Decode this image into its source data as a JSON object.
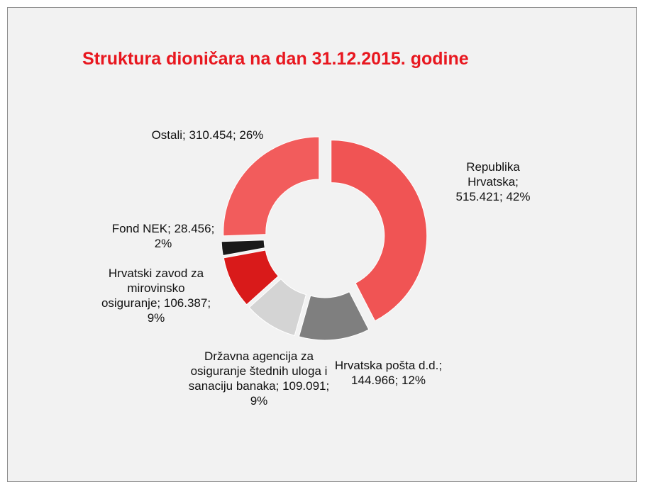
{
  "chart_data": {
    "type": "donut",
    "title": "Struktura dioničara na dan 31.12.2015. godine",
    "separator": "; ",
    "categories": [
      "Republika Hrvatska",
      "Hrvatska pošta d.d.",
      "Državna agencija za osiguranje štednih uloga i sanaciju banaka",
      "Hrvatski zavod za mirovinsko osiguranje",
      "Fond NEK",
      "Ostali"
    ],
    "values": [
      515421,
      144966,
      109091,
      106387,
      28456,
      310454
    ],
    "value_labels": [
      "515.421",
      "144.966",
      "109.091",
      "106.387",
      "28.456",
      "310.454"
    ],
    "percents": [
      42,
      12,
      9,
      9,
      2,
      26
    ],
    "percent_labels": [
      "42%",
      "12%",
      "9%",
      "9%",
      "2%",
      "26%"
    ],
    "colors": [
      "#f05454",
      "#7f7f7f",
      "#d4d4d4",
      "#d91a1a",
      "#1a1a1a",
      "#f25c5c"
    ]
  }
}
